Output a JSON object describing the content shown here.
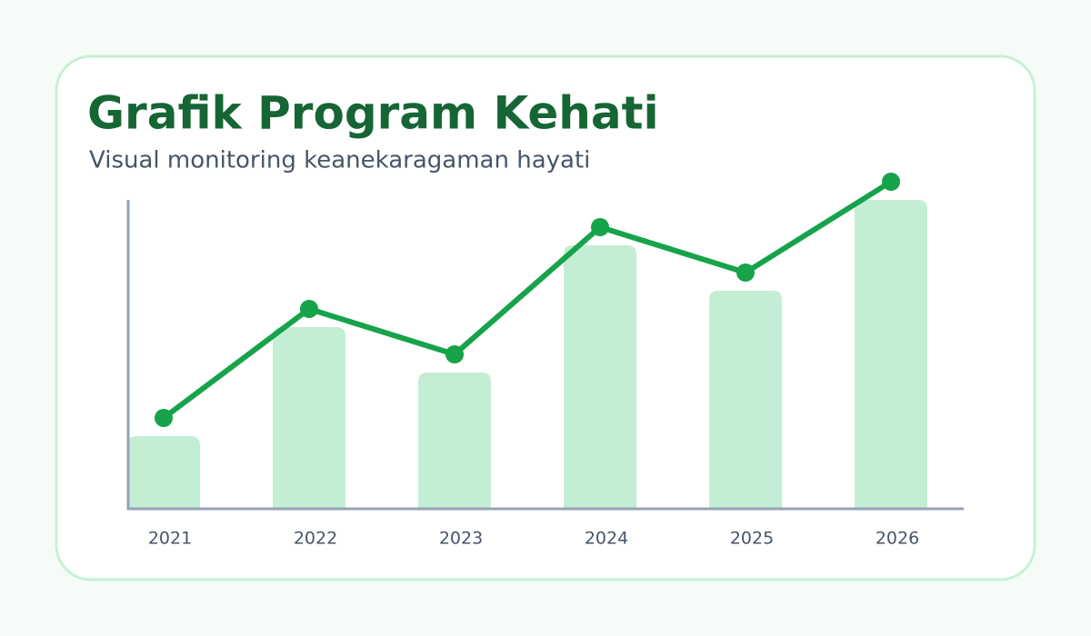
{
  "chart_data": {
    "type": "bar-line",
    "title": "Grafik Program Kehati",
    "subtitle": "Visual monitoring keanekaragaman hayati",
    "categories": [
      "2021",
      "2022",
      "2023",
      "2024",
      "2025",
      "2026"
    ],
    "series": [
      {
        "type": "bar",
        "color": "#c3eed4",
        "values": [
          4,
          10,
          7.5,
          14.5,
          12,
          17
        ]
      },
      {
        "type": "line",
        "color": "#16a34a",
        "values": [
          5,
          11,
          8.5,
          15.5,
          13,
          18
        ]
      }
    ],
    "ylim": [
      0,
      17
    ]
  }
}
